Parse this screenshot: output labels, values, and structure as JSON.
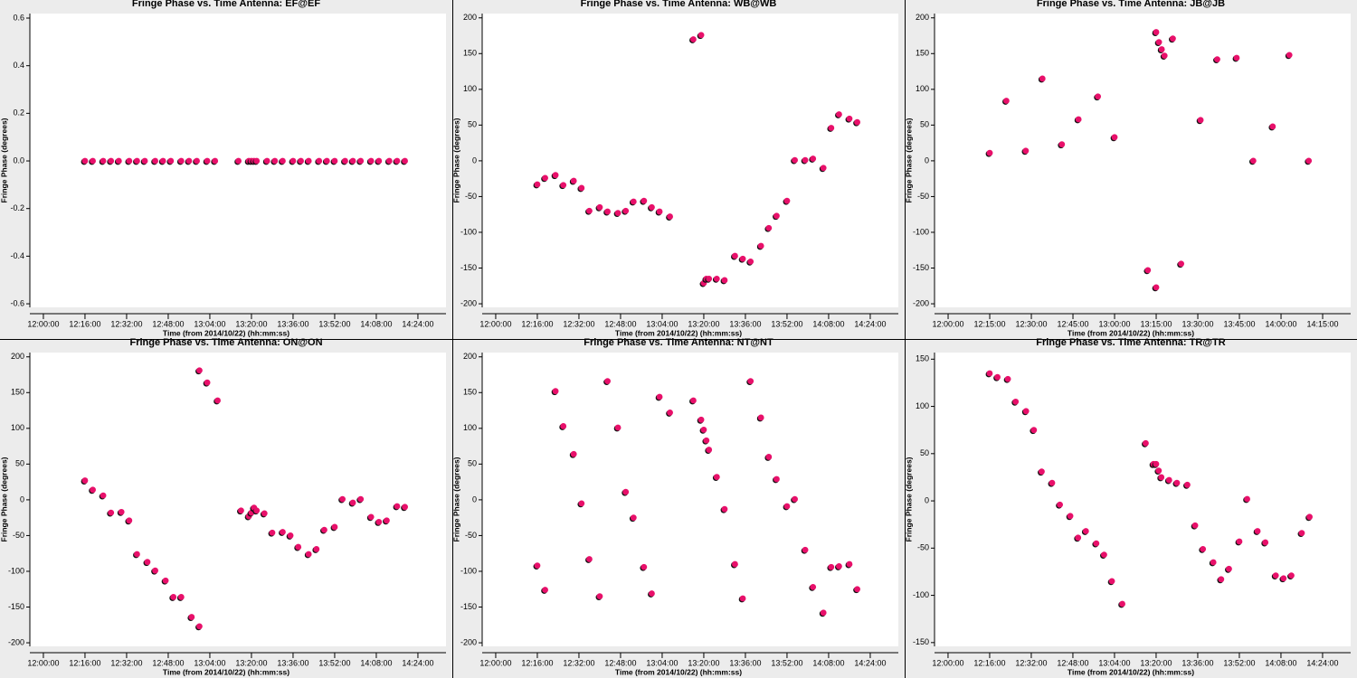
{
  "chart_data": [
    {
      "type": "scatter",
      "title": "Fringe Phase vs. Time Antenna: EF@EF",
      "xlabel": "Time (from 2014/10/22) (hh:mm:ss)",
      "ylabel": "Fringe Phase (degrees)",
      "color": "#e8106a",
      "x": [
        "12:16:00",
        "12:19:00",
        "12:23:00",
        "12:26:00",
        "12:29:00",
        "12:33:00",
        "12:36:00",
        "12:39:00",
        "12:43:00",
        "12:46:00",
        "12:49:00",
        "12:53:00",
        "12:56:00",
        "12:59:00",
        "13:03:00",
        "13:06:00",
        "13:15:00",
        "13:19:00",
        "13:20:00",
        "13:21:00",
        "13:22:00",
        "13:26:00",
        "13:29:00",
        "13:32:00",
        "13:36:00",
        "13:39:00",
        "13:42:00",
        "13:46:00",
        "13:49:00",
        "13:52:00",
        "13:56:00",
        "13:59:00",
        "14:02:00",
        "14:06:00",
        "14:09:00",
        "14:13:00",
        "14:16:00",
        "14:19:00"
      ],
      "values": [
        0,
        0,
        0,
        0,
        0,
        0,
        0,
        0,
        0,
        0,
        0,
        0,
        0,
        0,
        0,
        0,
        0,
        0,
        0,
        0,
        0,
        0,
        0,
        0,
        0,
        0,
        0,
        0,
        0,
        0,
        0,
        0,
        0,
        0,
        0,
        0,
        0,
        0
      ],
      "xlim": [
        "11:54:48",
        "14:34:48"
      ],
      "xticks": [
        "12:00:00",
        "12:16:00",
        "12:32:00",
        "12:48:00",
        "13:04:00",
        "13:20:00",
        "13:36:00",
        "13:52:00",
        "14:08:00",
        "14:24:00"
      ],
      "ylim": [
        -0.615,
        0.619
      ],
      "yticks": [
        0.6,
        0.4,
        0.2,
        {
          "value": 0,
          "label": "0.0"
        },
        -0.2,
        -0.4,
        -0.6
      ]
    },
    {
      "type": "scatter",
      "title": "Fringe Phase vs. Time Antenna: WB@WB",
      "xlabel": "Time (from 2014/10/22) (hh:mm:ss)",
      "ylabel": "Fringe Phase (degrees)",
      "color": "#e8106a",
      "x": [
        "12:16:00",
        "12:19:00",
        "12:23:00",
        "12:26:00",
        "12:30:00",
        "12:33:00",
        "12:36:00",
        "12:40:00",
        "12:43:00",
        "12:47:00",
        "12:50:00",
        "12:53:00",
        "12:57:00",
        "13:00:00",
        "13:03:00",
        "13:07:00",
        "13:16:00",
        "13:19:00",
        "13:20:00",
        "13:21:00",
        "13:22:00",
        "13:25:00",
        "13:28:00",
        "13:32:00",
        "13:35:00",
        "13:38:00",
        "13:42:00",
        "13:45:00",
        "13:48:00",
        "13:52:00",
        "13:55:00",
        "13:59:00",
        "14:02:00",
        "14:06:00",
        "14:09:00",
        "14:12:00",
        "14:16:00",
        "14:19:00"
      ],
      "values": [
        -33,
        -24,
        -20,
        -34,
        -28,
        -38,
        -70,
        -65,
        -71,
        -73,
        -70,
        -57,
        -56,
        -65,
        -71,
        -78,
        170,
        176,
        -171,
        -165,
        -165,
        -165,
        -167,
        -133,
        -137,
        -141,
        -119,
        -94,
        -77,
        -56,
        1,
        1,
        3,
        -10,
        46,
        65,
        59,
        54
      ],
      "xlim": [
        "11:54:48",
        "14:34:48"
      ],
      "xticks": [
        "12:00:00",
        "12:16:00",
        "12:32:00",
        "12:48:00",
        "13:04:00",
        "13:20:00",
        "13:36:00",
        "13:52:00",
        "14:08:00",
        "14:24:00"
      ],
      "ylim": [
        -205,
        206
      ],
      "yticks": [
        200,
        150,
        100,
        50,
        0,
        -50,
        -100,
        -150,
        -200
      ]
    },
    {
      "type": "scatter",
      "title": "Fringe Phase vs. Time Antenna: JB@JB",
      "xlabel": "Time (from 2014/10/22) (hh:mm:ss)",
      "ylabel": "Fringe Phase (degrees)",
      "color": "#e8106a",
      "x": [
        "12:15:00",
        "12:21:00",
        "12:28:00",
        "12:34:00",
        "12:41:00",
        "12:47:00",
        "12:54:00",
        "13:00:00",
        "13:12:00",
        "13:15:00",
        "13:15:00",
        "13:16:00",
        "13:17:00",
        "13:18:00",
        "13:21:00",
        "13:24:00",
        "13:31:00",
        "13:37:00",
        "13:44:00",
        "13:50:00",
        "13:57:00",
        "14:03:00",
        "14:10:00"
      ],
      "values": [
        11,
        84,
        14,
        115,
        23,
        58,
        90,
        33,
        -153,
        180,
        -177,
        166,
        156,
        147,
        171,
        -144,
        57,
        142,
        144,
        0,
        48,
        148,
        0
      ],
      "xlim": [
        "11:55:06",
        "14:25:06"
      ],
      "xticks": [
        "12:00:00",
        "12:15:00",
        "12:30:00",
        "12:45:00",
        "13:00:00",
        "13:15:00",
        "13:30:00",
        "13:45:00",
        "14:00:00",
        "14:15:00"
      ],
      "ylim": [
        -205,
        206
      ],
      "yticks": [
        200,
        150,
        100,
        50,
        0,
        -50,
        -100,
        -150,
        -200
      ]
    },
    {
      "type": "scatter",
      "title": "Fringe Phase vs. Time Antenna: ON@ON",
      "xlabel": "Time (from 2014/10/22) (hh:mm:ss)",
      "ylabel": "Fringe Phase (degrees)",
      "color": "#e8106a",
      "x": [
        "12:16:00",
        "12:19:00",
        "12:23:00",
        "12:26:00",
        "12:30:00",
        "12:33:00",
        "12:36:00",
        "12:40:00",
        "12:43:00",
        "12:47:00",
        "12:50:00",
        "12:53:00",
        "12:57:00",
        "13:00:00",
        "13:00:00",
        "13:03:00",
        "13:07:00",
        "13:16:00",
        "13:19:00",
        "13:20:00",
        "13:21:00",
        "13:22:00",
        "13:25:00",
        "13:28:00",
        "13:32:00",
        "13:35:00",
        "13:38:00",
        "13:42:00",
        "13:45:00",
        "13:48:00",
        "13:52:00",
        "13:55:00",
        "13:59:00",
        "14:02:00",
        "14:06:00",
        "14:09:00",
        "14:12:00",
        "14:16:00",
        "14:19:00"
      ],
      "values": [
        27,
        14,
        6,
        -18,
        -17,
        -29,
        -76,
        -87,
        -99,
        -113,
        -136,
        -136,
        -164,
        -177,
        181,
        164,
        139,
        -15,
        -23,
        -18,
        -11,
        -15,
        -19,
        -46,
        -45,
        -50,
        -66,
        -76,
        -69,
        -42,
        -38,
        1,
        -4,
        1,
        -24,
        -31,
        -29,
        -9,
        -10
      ],
      "xlim": [
        "11:54:48",
        "14:34:48"
      ],
      "xticks": [
        "12:00:00",
        "12:16:00",
        "12:32:00",
        "12:48:00",
        "13:04:00",
        "13:20:00",
        "13:36:00",
        "13:52:00",
        "14:08:00",
        "14:24:00"
      ],
      "ylim": [
        -205,
        206
      ],
      "yticks": [
        200,
        150,
        100,
        50,
        0,
        -50,
        -100,
        -150,
        -200
      ]
    },
    {
      "type": "scatter",
      "title": "Fringe Phase vs. Time Antenna: NT@NT",
      "xlabel": "Time (from 2014/10/22) (hh:mm:ss)",
      "ylabel": "Fringe Phase (degrees)",
      "color": "#e8106a",
      "x": [
        "12:16:00",
        "12:19:00",
        "12:23:00",
        "12:26:00",
        "12:30:00",
        "12:33:00",
        "12:36:00",
        "12:40:00",
        "12:43:00",
        "12:47:00",
        "12:50:00",
        "12:53:00",
        "12:57:00",
        "13:00:00",
        "13:03:00",
        "13:07:00",
        "13:16:00",
        "13:19:00",
        "13:20:00",
        "13:21:00",
        "13:22:00",
        "13:25:00",
        "13:28:00",
        "13:32:00",
        "13:35:00",
        "13:38:00",
        "13:42:00",
        "13:45:00",
        "13:48:00",
        "13:52:00",
        "13:55:00",
        "13:59:00",
        "14:02:00",
        "14:06:00",
        "14:09:00",
        "14:12:00",
        "14:16:00",
        "14:19:00"
      ],
      "values": [
        -92,
        -126,
        152,
        103,
        64,
        -5,
        -83,
        -135,
        166,
        101,
        11,
        -25,
        -94,
        -131,
        144,
        122,
        139,
        112,
        98,
        83,
        70,
        32,
        -13,
        -90,
        -138,
        166,
        115,
        60,
        29,
        -9,
        1,
        -70,
        -122,
        -158,
        -94,
        -93,
        -90,
        -125
      ],
      "xlim": [
        "11:54:48",
        "14:34:48"
      ],
      "xticks": [
        "12:00:00",
        "12:16:00",
        "12:32:00",
        "12:48:00",
        "13:04:00",
        "13:20:00",
        "13:36:00",
        "13:52:00",
        "14:08:00",
        "14:24:00"
      ],
      "ylim": [
        -205,
        206
      ],
      "yticks": [
        200,
        150,
        100,
        50,
        0,
        -50,
        -100,
        -150,
        -200
      ]
    },
    {
      "type": "scatter",
      "title": "Fringe Phase vs. Time Antenna: TR@TR",
      "xlabel": "Time (from 2014/10/22) (hh:mm:ss)",
      "ylabel": "Fringe Phase (degrees)",
      "color": "#e8106a",
      "x": [
        "12:16:00",
        "12:19:00",
        "12:23:00",
        "12:26:00",
        "12:30:00",
        "12:33:00",
        "12:36:00",
        "12:40:00",
        "12:43:00",
        "12:47:00",
        "12:50:00",
        "12:53:00",
        "12:57:00",
        "13:00:00",
        "13:03:00",
        "13:07:00",
        "13:16:00",
        "13:19:00",
        "13:20:00",
        "13:21:00",
        "13:22:00",
        "13:25:00",
        "13:28:00",
        "13:32:00",
        "13:35:00",
        "13:38:00",
        "13:42:00",
        "13:45:00",
        "13:48:00",
        "13:52:00",
        "13:55:00",
        "13:59:00",
        "14:02:00",
        "14:06:00",
        "14:09:00",
        "14:12:00",
        "14:16:00",
        "14:19:00"
      ],
      "values": [
        135,
        131,
        129,
        105,
        95,
        75,
        31,
        19,
        -4,
        -16,
        -39,
        -32,
        -45,
        -57,
        -85,
        -109,
        61,
        39,
        39,
        32,
        25,
        22,
        19,
        17,
        -26,
        -51,
        -65,
        -83,
        -72,
        -43,
        2,
        -32,
        -44,
        -79,
        -82,
        -79,
        -34,
        -17
      ],
      "xlim": [
        "11:54:48",
        "14:34:48"
      ],
      "xticks": [
        "12:00:00",
        "12:16:00",
        "12:32:00",
        "12:48:00",
        "13:04:00",
        "13:20:00",
        "13:36:00",
        "13:52:00",
        "14:08:00",
        "14:24:00"
      ],
      "ylim": [
        -154,
        157
      ],
      "yticks": [
        150,
        100,
        50,
        0,
        -50,
        -100,
        -150
      ]
    }
  ]
}
